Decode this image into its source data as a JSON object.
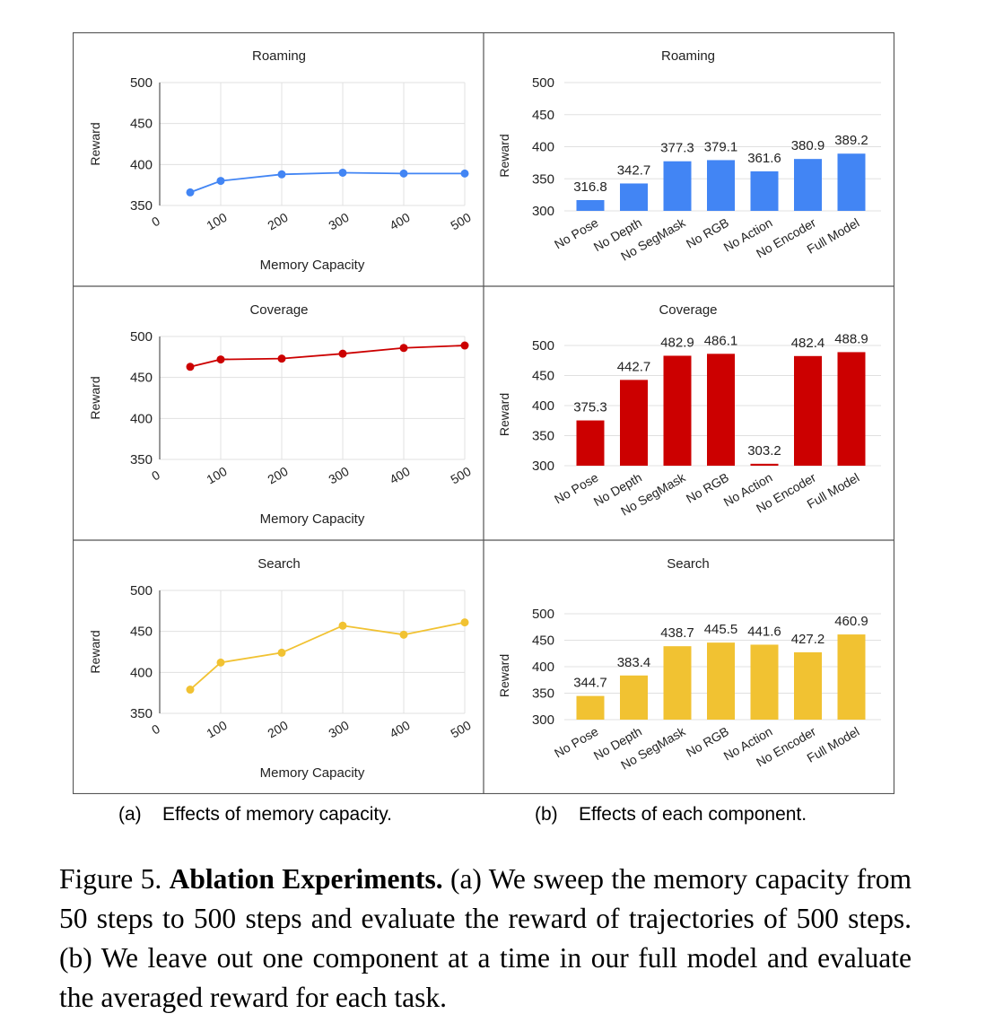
{
  "figure": {
    "caption_label": "Figure 5.",
    "caption_bold": "Ablation Experiments.",
    "caption_text": "(a) We sweep the memory ca­pacity from 50 steps to 500 steps and evaluate the reward of tra­jectories of 500 steps. (b) We leave out one component at a time in our full model and evaluate the averaged reward for each task.",
    "subcaption_a": "(a)    Effects of memory capacity.",
    "subcaption_b": "(b)    Effects of each component."
  },
  "colors": {
    "roaming": "#4285f4",
    "coverage": "#cc0000",
    "search": "#f1c232",
    "grid": "#e0e0e0",
    "border": "#555555"
  },
  "chart_data": [
    {
      "type": "line",
      "panel": "a",
      "title": "Roaming",
      "xlabel": "Memory Capacity",
      "ylabel": "Reward",
      "color": "#4285f4",
      "xlim": [
        0,
        500
      ],
      "ylim": [
        350,
        500
      ],
      "x_ticks": [
        0,
        100,
        200,
        300,
        400,
        500
      ],
      "y_ticks": [
        350,
        400,
        450,
        500
      ],
      "x": [
        50,
        100,
        200,
        300,
        400,
        500
      ],
      "y": [
        366,
        380,
        388,
        390,
        389,
        389
      ]
    },
    {
      "type": "bar",
      "panel": "b",
      "title": "Roaming",
      "ylabel": "Reward",
      "color": "#4285f4",
      "ylim": [
        300,
        500
      ],
      "y_ticks": [
        300,
        350,
        400,
        450,
        500
      ],
      "categories": [
        "No Pose",
        "No Depth",
        "No SegMask",
        "No RGB",
        "No Action",
        "No Encoder",
        "Full Model"
      ],
      "values": [
        316.8,
        342.7,
        377.3,
        379.1,
        361.6,
        380.9,
        389.2
      ],
      "labels": [
        "316.8",
        "342.7",
        "377.3",
        "379.1",
        "361.6",
        "380.9",
        "389.2"
      ]
    },
    {
      "type": "line",
      "panel": "a",
      "title": "Coverage",
      "xlabel": "Memory Capacity",
      "ylabel": "Reward",
      "color": "#cc0000",
      "xlim": [
        0,
        500
      ],
      "ylim": [
        350,
        500
      ],
      "x_ticks": [
        0,
        100,
        200,
        300,
        400,
        500
      ],
      "y_ticks": [
        350,
        400,
        450,
        500
      ],
      "x": [
        50,
        100,
        200,
        300,
        400,
        500
      ],
      "y": [
        463,
        472,
        473,
        479,
        486,
        489
      ]
    },
    {
      "type": "bar",
      "panel": "b",
      "title": "Coverage",
      "ylabel": "Reward",
      "color": "#cc0000",
      "ylim": [
        300,
        500
      ],
      "y_ticks": [
        300,
        350,
        400,
        450,
        500
      ],
      "categories": [
        "No Pose",
        "No Depth",
        "No SegMask",
        "No RGB",
        "No Action",
        "No Encoder",
        "Full Model"
      ],
      "values": [
        375.3,
        442.7,
        482.9,
        486.1,
        303.2,
        482.4,
        488.9
      ],
      "labels": [
        "375.3",
        "442.7",
        "482.9",
        "486.1",
        "303.2",
        "482.4",
        "488.9"
      ]
    },
    {
      "type": "line",
      "panel": "a",
      "title": "Search",
      "xlabel": "Memory Capacity",
      "ylabel": "Reward",
      "color": "#f1c232",
      "xlim": [
        0,
        500
      ],
      "ylim": [
        350,
        500
      ],
      "x_ticks": [
        0,
        100,
        200,
        300,
        400,
        500
      ],
      "y_ticks": [
        350,
        400,
        450,
        500
      ],
      "x": [
        50,
        100,
        200,
        300,
        400,
        500
      ],
      "y": [
        379,
        412,
        424,
        457,
        446,
        461
      ]
    },
    {
      "type": "bar",
      "panel": "b",
      "title": "Search",
      "ylabel": "Reward",
      "color": "#f1c232",
      "ylim": [
        300,
        500
      ],
      "y_ticks": [
        300,
        350,
        400,
        450,
        500
      ],
      "categories": [
        "No Pose",
        "No Depth",
        "No SegMask",
        "No RGB",
        "No Action",
        "No Encoder",
        "Full Model"
      ],
      "values": [
        344.7,
        383.4,
        438.7,
        445.5,
        441.6,
        427.2,
        460.9
      ],
      "labels": [
        "344.7",
        "383.4",
        "438.7",
        "445.5",
        "441.6",
        "427.2",
        "460.9"
      ]
    }
  ]
}
